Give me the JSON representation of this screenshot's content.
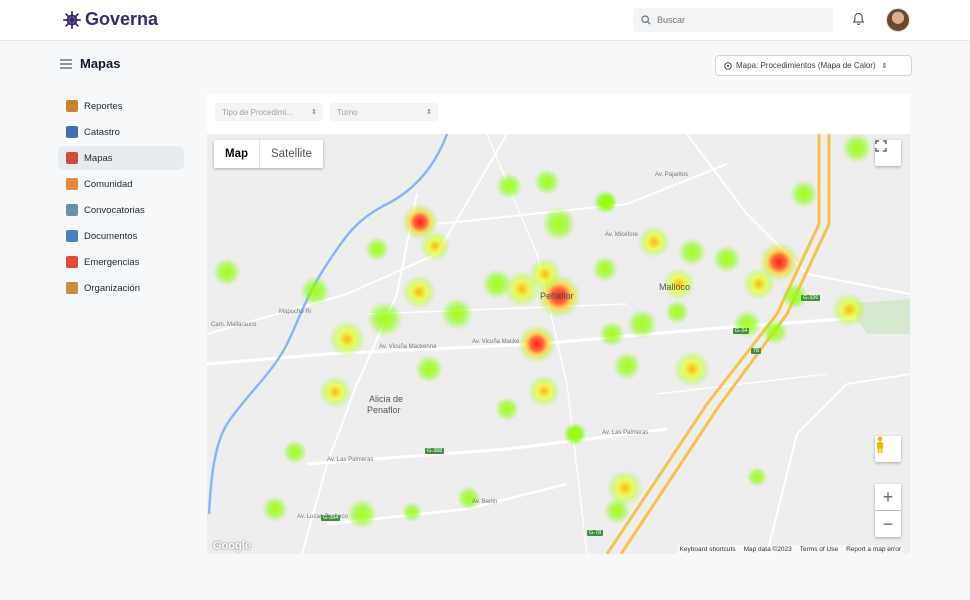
{
  "app": {
    "name": "Governa"
  },
  "header": {
    "search_placeholder": "Buscar"
  },
  "page": {
    "title": "Mapas",
    "map_selector": "Mapa: Procedimientos (Mapa de Calor)"
  },
  "sidebar": {
    "items": [
      {
        "label": "Reportes",
        "color": "#c9822e"
      },
      {
        "label": "Catastro",
        "color": "#3f6fb5"
      },
      {
        "label": "Mapas",
        "color": "#d24a3a",
        "active": true
      },
      {
        "label": "Comunidad",
        "color": "#e08a3a"
      },
      {
        "label": "Convocatorias",
        "color": "#6a8fb0"
      },
      {
        "label": "Documentos",
        "color": "#4a7fc4"
      },
      {
        "label": "Emergencias",
        "color": "#e04a3a"
      },
      {
        "label": "Organización",
        "color": "#c98a3a"
      }
    ]
  },
  "filters": {
    "tipo": "Tipo de Procedimi...",
    "turno": "Turno"
  },
  "map": {
    "type_map": "Map",
    "type_satellite": "Satellite",
    "places": {
      "penaflor": "Peñaflor",
      "malloco": "Malloco",
      "alicia1": "Alicia de",
      "alicia2": "Penaflor"
    },
    "roads": {
      "vicuna1": "Av. Vicuña Mackenna",
      "vicuna2": "Av. Vicuña Macke",
      "palmeras1": "Av. Las Palmeras",
      "palmeras2": "Av. Las Palmeras",
      "berlin": "Av. Berlin",
      "pajaritos": "Av. Pajaritos",
      "micefore": "Av. Micefore",
      "mallarauco": "Cam. Mallarauco",
      "mapocho": "Mapocho Ri",
      "lucas": "Av. Lucas Pacheco"
    },
    "shields": {
      "g388": "G-388",
      "g78": "G-78",
      "g34": "G-34",
      "r78": "78",
      "g326": "G-326",
      "g394": "G-394"
    },
    "google": "Google",
    "attribution": {
      "shortcuts": "Keyboard shortcuts",
      "data": "Map data ©2023",
      "terms": "Terms of Use",
      "report": "Report a map error"
    },
    "heat_colors": {
      "low": "#7fff00",
      "mid": "#ffd700",
      "high": "#ff2020"
    }
  }
}
